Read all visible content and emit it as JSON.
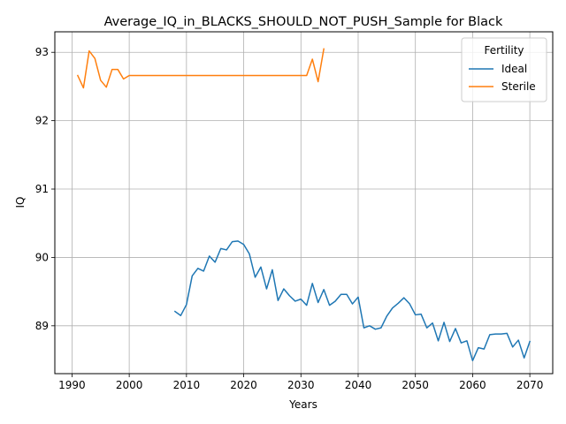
{
  "chart_data": {
    "type": "line",
    "title": "Average_IQ_in_BLACKS_SHOULD_NOT_PUSH_Sample for Black",
    "xlabel": "Years",
    "ylabel": "IQ",
    "xlim": [
      1987,
      2074
    ],
    "ylim": [
      88.3,
      93.3
    ],
    "x_ticks": [
      1990,
      2000,
      2010,
      2020,
      2030,
      2040,
      2050,
      2060,
      2070
    ],
    "y_ticks": [
      89,
      90,
      91,
      92,
      93
    ],
    "grid": true,
    "legend": {
      "title": "Fertility",
      "placement": "top-right"
    },
    "series": [
      {
        "name": "Ideal",
        "color": "#1f77b4",
        "points": [
          [
            2008,
            89.21
          ],
          [
            2009,
            89.15
          ],
          [
            2010,
            89.31
          ],
          [
            2011,
            89.73
          ],
          [
            2012,
            89.84
          ],
          [
            2013,
            89.8
          ],
          [
            2014,
            90.02
          ],
          [
            2015,
            89.93
          ],
          [
            2016,
            90.13
          ],
          [
            2017,
            90.11
          ],
          [
            2018,
            90.23
          ],
          [
            2019,
            90.24
          ],
          [
            2020,
            90.19
          ],
          [
            2021,
            90.05
          ],
          [
            2022,
            89.71
          ],
          [
            2023,
            89.86
          ],
          [
            2024,
            89.54
          ],
          [
            2025,
            89.82
          ],
          [
            2026,
            89.37
          ],
          [
            2027,
            89.54
          ],
          [
            2028,
            89.44
          ],
          [
            2029,
            89.36
          ],
          [
            2030,
            89.39
          ],
          [
            2031,
            89.3
          ],
          [
            2032,
            89.62
          ],
          [
            2033,
            89.34
          ],
          [
            2034,
            89.53
          ],
          [
            2035,
            89.3
          ],
          [
            2036,
            89.36
          ],
          [
            2037,
            89.46
          ],
          [
            2038,
            89.46
          ],
          [
            2039,
            89.32
          ],
          [
            2040,
            89.42
          ],
          [
            2041,
            88.97
          ],
          [
            2042,
            89.0
          ],
          [
            2043,
            88.95
          ],
          [
            2044,
            88.97
          ],
          [
            2045,
            89.14
          ],
          [
            2046,
            89.26
          ],
          [
            2047,
            89.33
          ],
          [
            2048,
            89.41
          ],
          [
            2049,
            89.32
          ],
          [
            2050,
            89.16
          ],
          [
            2051,
            89.17
          ],
          [
            2052,
            88.97
          ],
          [
            2053,
            89.04
          ],
          [
            2054,
            88.78
          ],
          [
            2055,
            89.05
          ],
          [
            2056,
            88.77
          ],
          [
            2057,
            88.96
          ],
          [
            2058,
            88.75
          ],
          [
            2059,
            88.78
          ],
          [
            2060,
            88.49
          ],
          [
            2061,
            88.68
          ],
          [
            2062,
            88.66
          ],
          [
            2063,
            88.87
          ],
          [
            2064,
            88.88
          ],
          [
            2065,
            88.88
          ],
          [
            2066,
            88.89
          ],
          [
            2067,
            88.69
          ],
          [
            2068,
            88.79
          ],
          [
            2069,
            88.53
          ],
          [
            2070,
            88.77
          ]
        ]
      },
      {
        "name": "Sterile",
        "color": "#ff7f0e",
        "points": [
          [
            1991,
            92.66
          ],
          [
            1992,
            92.48
          ],
          [
            1993,
            93.02
          ],
          [
            1994,
            92.91
          ],
          [
            1995,
            92.59
          ],
          [
            1996,
            92.49
          ],
          [
            1997,
            92.75
          ],
          [
            1998,
            92.75
          ],
          [
            1999,
            92.61
          ],
          [
            2000,
            92.66
          ],
          [
            2001,
            92.66
          ],
          [
            2002,
            92.66
          ],
          [
            2003,
            92.66
          ],
          [
            2004,
            92.66
          ],
          [
            2005,
            92.66
          ],
          [
            2006,
            92.66
          ],
          [
            2007,
            92.66
          ],
          [
            2008,
            92.66
          ],
          [
            2009,
            92.66
          ],
          [
            2010,
            92.66
          ],
          [
            2011,
            92.66
          ],
          [
            2012,
            92.66
          ],
          [
            2013,
            92.66
          ],
          [
            2014,
            92.66
          ],
          [
            2015,
            92.66
          ],
          [
            2016,
            92.66
          ],
          [
            2017,
            92.66
          ],
          [
            2018,
            92.66
          ],
          [
            2019,
            92.66
          ],
          [
            2020,
            92.66
          ],
          [
            2021,
            92.66
          ],
          [
            2022,
            92.66
          ],
          [
            2023,
            92.66
          ],
          [
            2024,
            92.66
          ],
          [
            2025,
            92.66
          ],
          [
            2026,
            92.66
          ],
          [
            2027,
            92.66
          ],
          [
            2028,
            92.66
          ],
          [
            2029,
            92.66
          ],
          [
            2030,
            92.66
          ],
          [
            2031,
            92.66
          ],
          [
            2032,
            92.9
          ],
          [
            2033,
            92.57
          ],
          [
            2034,
            93.05
          ]
        ]
      }
    ]
  }
}
